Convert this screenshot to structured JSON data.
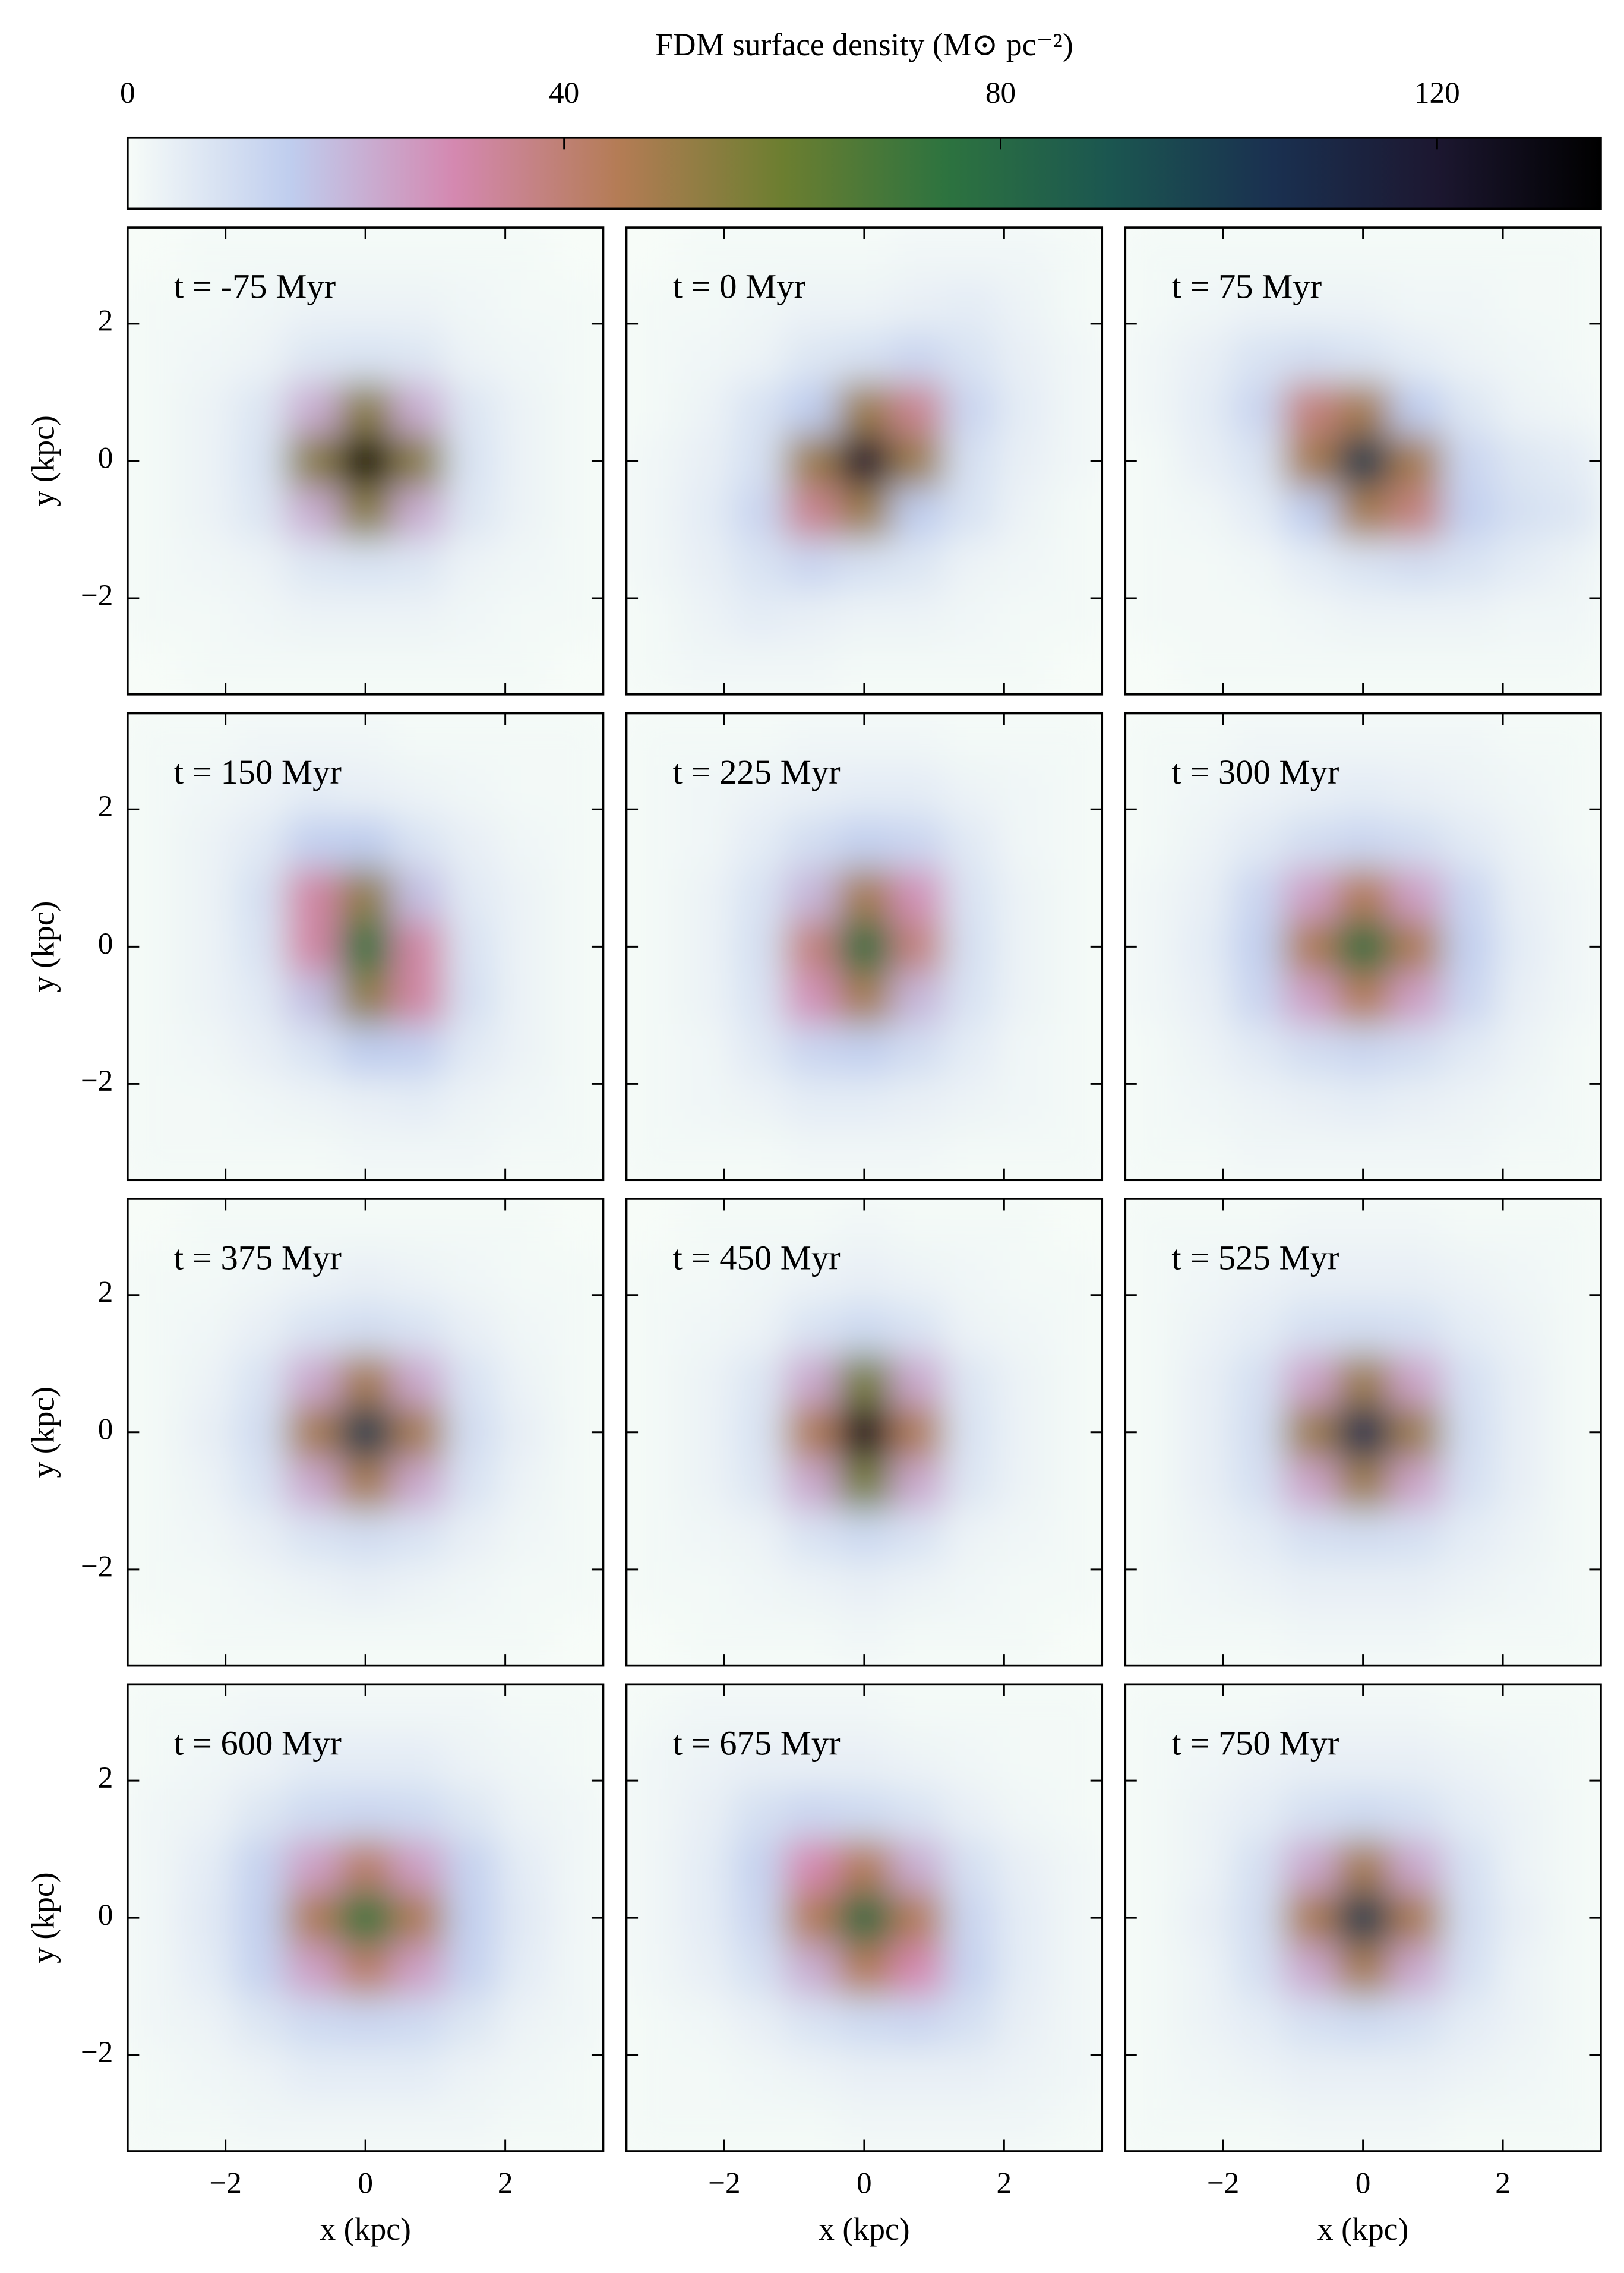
{
  "chart_data": {
    "type": "heatmap",
    "colorbar": {
      "label": "FDM surface density (M⊙ pc⁻²)",
      "lim": [
        0,
        135
      ],
      "ticks": [
        0,
        40,
        80,
        120
      ]
    },
    "colormap": [
      "#f7fcf8",
      "#bfcdee",
      "#d488b0",
      "#b47c55",
      "#6c7e30",
      "#2d733f",
      "#1b5650",
      "#1a3050",
      "#1c1730",
      "#000000"
    ],
    "xlabel": "x (kpc)",
    "ylabel": "y (kpc)",
    "xlim": [
      -3.4,
      3.4
    ],
    "ylim": [
      -3.4,
      3.4
    ],
    "xticks": [
      {
        "value": -2,
        "label": "−2"
      },
      0,
      2
    ],
    "yticks": [
      {
        "value": -2,
        "label": "−2"
      },
      0,
      2
    ],
    "x": [
      -3.02,
      -2.27,
      -1.51,
      -0.76,
      0,
      0.76,
      1.51,
      2.27,
      3.02
    ],
    "y": [
      3.02,
      2.27,
      1.51,
      0.76,
      0,
      -0.76,
      -1.51,
      -2.27,
      -3.02
    ],
    "panels": [
      {
        "title": "t = -75 Myr",
        "values": [
          [
            0,
            1,
            1,
            1,
            1,
            1,
            1,
            1,
            0
          ],
          [
            1,
            1,
            2,
            3,
            3,
            3,
            2,
            1,
            1
          ],
          [
            1,
            2,
            3,
            7,
            8,
            7,
            3,
            2,
            1
          ],
          [
            1,
            3,
            7,
            22,
            54,
            22,
            7,
            3,
            1
          ],
          [
            1,
            3,
            8,
            54,
            135,
            54,
            8,
            3,
            1
          ],
          [
            1,
            3,
            7,
            22,
            54,
            22,
            7,
            3,
            1
          ],
          [
            1,
            2,
            3,
            7,
            8,
            7,
            3,
            2,
            1
          ],
          [
            1,
            1,
            2,
            3,
            3,
            3,
            2,
            1,
            1
          ],
          [
            0,
            1,
            1,
            1,
            1,
            1,
            1,
            1,
            0
          ]
        ]
      },
      {
        "title": "t = 0 Myr",
        "values": [
          [
            0,
            1,
            1,
            1,
            1,
            2,
            2,
            2,
            1
          ],
          [
            1,
            1,
            2,
            3,
            3,
            4,
            5,
            3,
            1
          ],
          [
            1,
            2,
            3,
            7,
            9,
            12,
            8,
            4,
            2
          ],
          [
            1,
            3,
            8,
            15,
            50,
            35,
            12,
            5,
            2
          ],
          [
            2,
            4,
            9,
            50,
            120,
            50,
            9,
            4,
            2
          ],
          [
            2,
            5,
            12,
            35,
            50,
            15,
            8,
            3,
            1
          ],
          [
            2,
            4,
            8,
            12,
            9,
            7,
            3,
            2,
            1
          ],
          [
            1,
            3,
            5,
            4,
            3,
            3,
            2,
            1,
            1
          ],
          [
            1,
            2,
            2,
            2,
            1,
            1,
            1,
            1,
            0
          ]
        ]
      },
      {
        "title": "t = 75 Myr",
        "values": [
          [
            1,
            1,
            1,
            1,
            1,
            1,
            1,
            1,
            1
          ],
          [
            1,
            2,
            3,
            3,
            3,
            2,
            2,
            1,
            1
          ],
          [
            2,
            4,
            8,
            10,
            8,
            5,
            3,
            2,
            1
          ],
          [
            2,
            5,
            12,
            38,
            48,
            15,
            7,
            3,
            2
          ],
          [
            1,
            4,
            8,
            48,
            100,
            48,
            12,
            7,
            5
          ],
          [
            1,
            2,
            5,
            15,
            48,
            38,
            14,
            9,
            7
          ],
          [
            1,
            1,
            2,
            5,
            8,
            10,
            8,
            5,
            3
          ],
          [
            1,
            1,
            1,
            2,
            3,
            3,
            3,
            2,
            2
          ],
          [
            0,
            1,
            1,
            1,
            1,
            1,
            1,
            1,
            1
          ]
        ]
      },
      {
        "title": "t = 150 Myr",
        "values": [
          [
            1,
            1,
            2,
            2,
            2,
            1,
            1,
            1,
            1
          ],
          [
            1,
            2,
            3,
            5,
            4,
            3,
            2,
            1,
            1
          ],
          [
            1,
            3,
            6,
            14,
            15,
            8,
            4,
            2,
            1
          ],
          [
            1,
            3,
            9,
            32,
            52,
            18,
            6,
            3,
            1
          ],
          [
            1,
            3,
            8,
            32,
            75,
            32,
            8,
            3,
            1
          ],
          [
            1,
            3,
            6,
            18,
            52,
            32,
            9,
            3,
            1
          ],
          [
            1,
            2,
            4,
            8,
            15,
            14,
            6,
            3,
            1
          ],
          [
            1,
            1,
            2,
            3,
            4,
            5,
            3,
            2,
            1
          ],
          [
            1,
            1,
            1,
            1,
            2,
            2,
            2,
            1,
            1
          ]
        ]
      },
      {
        "title": "t = 225 Myr",
        "values": [
          [
            1,
            1,
            1,
            2,
            2,
            2,
            1,
            1,
            1
          ],
          [
            1,
            2,
            3,
            4,
            5,
            5,
            3,
            2,
            1
          ],
          [
            1,
            2,
            5,
            10,
            14,
            12,
            6,
            2,
            1
          ],
          [
            1,
            3,
            8,
            20,
            48,
            28,
            8,
            3,
            1
          ],
          [
            1,
            3,
            9,
            38,
            78,
            38,
            9,
            3,
            1
          ],
          [
            1,
            3,
            8,
            28,
            48,
            20,
            8,
            3,
            1
          ],
          [
            1,
            2,
            6,
            12,
            14,
            10,
            5,
            2,
            1
          ],
          [
            1,
            2,
            3,
            5,
            5,
            4,
            3,
            2,
            1
          ],
          [
            1,
            1,
            1,
            2,
            2,
            2,
            1,
            1,
            1
          ]
        ]
      },
      {
        "title": "t = 300 Myr",
        "values": [
          [
            1,
            1,
            2,
            2,
            2,
            2,
            2,
            1,
            1
          ],
          [
            1,
            2,
            3,
            4,
            5,
            4,
            3,
            2,
            1
          ],
          [
            1,
            3,
            6,
            10,
            12,
            10,
            6,
            3,
            1
          ],
          [
            2,
            4,
            12,
            25,
            45,
            25,
            12,
            4,
            2
          ],
          [
            2,
            5,
            14,
            46,
            78,
            46,
            14,
            5,
            2
          ],
          [
            2,
            4,
            12,
            25,
            45,
            25,
            12,
            4,
            2
          ],
          [
            1,
            3,
            6,
            10,
            12,
            10,
            6,
            3,
            1
          ],
          [
            1,
            2,
            3,
            4,
            5,
            4,
            3,
            2,
            1
          ],
          [
            1,
            1,
            2,
            2,
            2,
            2,
            2,
            1,
            1
          ]
        ]
      },
      {
        "title": "t = 375 Myr",
        "values": [
          [
            0,
            1,
            1,
            1,
            1,
            1,
            1,
            1,
            0
          ],
          [
            1,
            1,
            2,
            3,
            4,
            3,
            2,
            1,
            1
          ],
          [
            1,
            2,
            4,
            8,
            10,
            8,
            4,
            2,
            1
          ],
          [
            1,
            3,
            8,
            23,
            48,
            23,
            8,
            3,
            1
          ],
          [
            1,
            4,
            10,
            48,
            100,
            48,
            10,
            4,
            1
          ],
          [
            1,
            3,
            8,
            23,
            48,
            23,
            8,
            3,
            1
          ],
          [
            1,
            2,
            4,
            8,
            10,
            8,
            4,
            2,
            1
          ],
          [
            1,
            1,
            2,
            3,
            4,
            3,
            2,
            1,
            1
          ],
          [
            0,
            1,
            1,
            1,
            1,
            1,
            1,
            1,
            0
          ]
        ]
      },
      {
        "title": "t = 450 Myr",
        "values": [
          [
            0,
            1,
            1,
            1,
            2,
            1,
            1,
            1,
            0
          ],
          [
            1,
            1,
            2,
            3,
            4,
            3,
            2,
            1,
            1
          ],
          [
            1,
            2,
            3,
            8,
            11,
            8,
            3,
            2,
            1
          ],
          [
            1,
            3,
            7,
            23,
            58,
            23,
            7,
            3,
            1
          ],
          [
            1,
            3,
            8,
            46,
            125,
            46,
            8,
            3,
            1
          ],
          [
            1,
            3,
            7,
            23,
            58,
            23,
            7,
            3,
            1
          ],
          [
            1,
            2,
            3,
            8,
            11,
            8,
            3,
            2,
            1
          ],
          [
            1,
            1,
            2,
            3,
            4,
            3,
            2,
            1,
            1
          ],
          [
            0,
            1,
            1,
            1,
            2,
            1,
            1,
            1,
            0
          ]
        ]
      },
      {
        "title": "t = 525 Myr",
        "values": [
          [
            1,
            1,
            1,
            2,
            2,
            2,
            1,
            1,
            1
          ],
          [
            1,
            2,
            3,
            4,
            4,
            4,
            3,
            2,
            1
          ],
          [
            1,
            3,
            5,
            9,
            10,
            9,
            5,
            3,
            1
          ],
          [
            1,
            4,
            9,
            24,
            50,
            24,
            9,
            4,
            1
          ],
          [
            1,
            4,
            10,
            50,
            105,
            50,
            10,
            4,
            1
          ],
          [
            1,
            4,
            9,
            24,
            50,
            24,
            9,
            4,
            1
          ],
          [
            1,
            3,
            5,
            9,
            10,
            9,
            5,
            3,
            1
          ],
          [
            1,
            2,
            3,
            4,
            4,
            4,
            3,
            2,
            1
          ],
          [
            1,
            1,
            1,
            2,
            2,
            2,
            1,
            1,
            1
          ]
        ]
      },
      {
        "title": "t = 600 Myr",
        "values": [
          [
            1,
            1,
            2,
            2,
            2,
            2,
            2,
            1,
            1
          ],
          [
            1,
            2,
            3,
            5,
            5,
            5,
            3,
            2,
            1
          ],
          [
            2,
            3,
            7,
            11,
            12,
            11,
            7,
            3,
            2
          ],
          [
            2,
            5,
            13,
            25,
            42,
            25,
            13,
            5,
            2
          ],
          [
            2,
            6,
            14,
            46,
            75,
            46,
            14,
            6,
            2
          ],
          [
            2,
            5,
            13,
            25,
            42,
            25,
            13,
            5,
            2
          ],
          [
            2,
            3,
            7,
            11,
            12,
            11,
            7,
            3,
            2
          ],
          [
            1,
            2,
            3,
            5,
            5,
            5,
            3,
            2,
            1
          ],
          [
            1,
            1,
            2,
            2,
            2,
            2,
            2,
            1,
            1
          ]
        ]
      },
      {
        "title": "t = 675 Myr",
        "values": [
          [
            1,
            2,
            2,
            2,
            2,
            1,
            1,
            1,
            1
          ],
          [
            2,
            3,
            4,
            4,
            4,
            3,
            2,
            1,
            1
          ],
          [
            2,
            4,
            9,
            12,
            11,
            8,
            4,
            2,
            1
          ],
          [
            2,
            5,
            13,
            30,
            45,
            22,
            9,
            4,
            2
          ],
          [
            2,
            5,
            12,
            45,
            80,
            45,
            12,
            5,
            2
          ],
          [
            2,
            4,
            9,
            22,
            45,
            30,
            13,
            5,
            2
          ],
          [
            1,
            2,
            4,
            8,
            11,
            12,
            9,
            4,
            2
          ],
          [
            1,
            1,
            2,
            3,
            4,
            4,
            4,
            3,
            2
          ],
          [
            1,
            1,
            1,
            1,
            2,
            2,
            2,
            2,
            1
          ]
        ]
      },
      {
        "title": "t = 750 Myr",
        "values": [
          [
            1,
            1,
            1,
            2,
            2,
            2,
            1,
            1,
            1
          ],
          [
            1,
            2,
            3,
            4,
            4,
            4,
            3,
            2,
            1
          ],
          [
            1,
            3,
            5,
            9,
            11,
            9,
            5,
            3,
            1
          ],
          [
            1,
            3,
            9,
            23,
            48,
            23,
            9,
            3,
            1
          ],
          [
            1,
            4,
            10,
            47,
            100,
            47,
            10,
            4,
            1
          ],
          [
            1,
            3,
            9,
            23,
            48,
            23,
            9,
            3,
            1
          ],
          [
            1,
            3,
            5,
            9,
            11,
            9,
            5,
            3,
            1
          ],
          [
            1,
            2,
            3,
            4,
            4,
            4,
            3,
            2,
            1
          ],
          [
            1,
            1,
            1,
            2,
            2,
            2,
            1,
            1,
            1
          ]
        ]
      }
    ]
  }
}
